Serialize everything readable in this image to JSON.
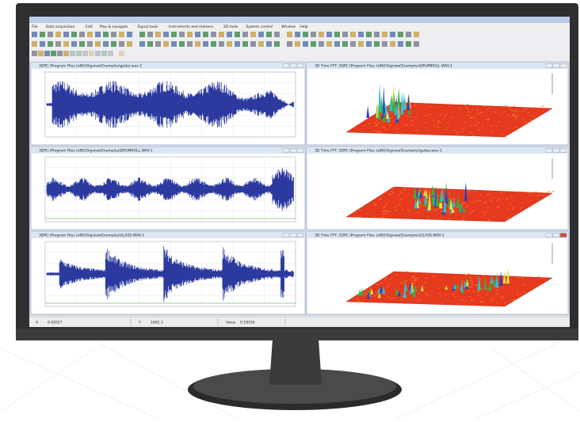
{
  "menu": [
    "File",
    "Data acquisition",
    "Edit",
    "Play & navigate",
    "Signal tools",
    "Instruments and markers",
    "3D tools",
    "System control",
    "Window",
    "Help"
  ],
  "panels": [
    {
      "title": "3DPC:\\Program Files (x86)\\Sigview\\Examples\\guitar.wav-1"
    },
    {
      "title": "3D Time FFT: 3DPC:\\Program Files (x86)\\Sigview\\Examples\\DRUMROLL.WAV-1"
    },
    {
      "title": "3DPC:\\Program Files (x86)\\Sigview\\Examples\\DRUMROLL.WAV-1"
    },
    {
      "title": "3D Time FFT: 3DPC:\\Program Files (x86)\\Sigview\\Examples\\guitar.wav-1"
    },
    {
      "title": "3DPC:\\Program Files (x86)\\Sigview\\Examples\\GLASS.WAV-1"
    },
    {
      "title": "3D Time FFT: 3DPC:\\Program Files (x86)\\Sigview\\Examples\\GLASS.WAV-1"
    }
  ],
  "status": {
    "x_label": "X",
    "x_value": "0.42017",
    "y_label": "Y",
    "y_value": "1891.3",
    "value_label": "Value",
    "value": "0.18316"
  }
}
